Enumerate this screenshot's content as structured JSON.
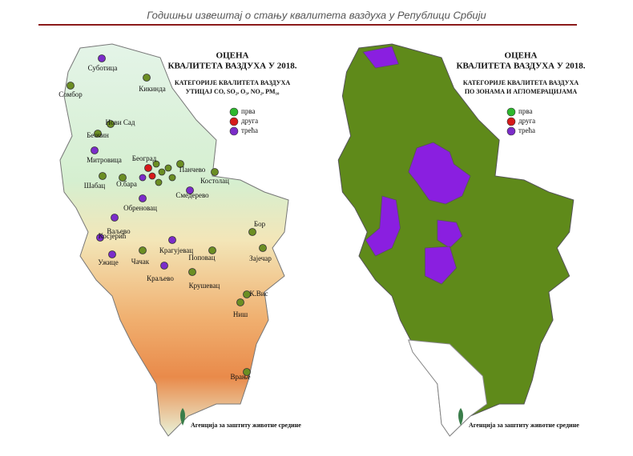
{
  "header": {
    "title": "Годишњи извештај о стању квалитета ваздуха у Републици Србији"
  },
  "left_map": {
    "title_lines": [
      "ОЦЕНА",
      "КВАЛИТЕТА ВАЗДУХА У 2018."
    ],
    "subtitle_lines": [
      "КАТЕГОРИЈЕ КВАЛИТЕТА ВАЗДУХА",
      "УТИЦАЈ CO, SO₂, O₃, NO₂, PM₁₀"
    ],
    "legend": [
      "прва",
      "друга",
      "трећа"
    ],
    "stations": [
      "Суботица",
      "Сомбор",
      "Кикинда",
      "Нови Сад",
      "Беочин",
      "Митровица",
      "Шабац",
      "О.бара",
      "Београд",
      "Панчево",
      "Костолац",
      "Смедерево",
      "Обреновац",
      "Ваљево",
      "Косјерић",
      "Ужице",
      "Чачак",
      "Краљево",
      "Крагујевац",
      "Поповац",
      "Крушевац",
      "Бор",
      "Зајечар",
      "К.Вис",
      "Ниш",
      "Врање"
    ],
    "footer": "Агенција за заштиту животне средине"
  },
  "right_map": {
    "title_lines": [
      "ОЦЕНА",
      "КВАЛИТЕТА ВАЗДУХА У 2018."
    ],
    "subtitle_lines": [
      "КАТЕГОРИЈЕ КВАЛИТЕТА ВАЗДУХА",
      "ПО ЗОНАМА И АГЛОМЕРАЦИЈАМА"
    ],
    "legend": [
      "прва",
      "друга",
      "трећа"
    ],
    "footer": "Агенција за заштиту животне средине"
  }
}
